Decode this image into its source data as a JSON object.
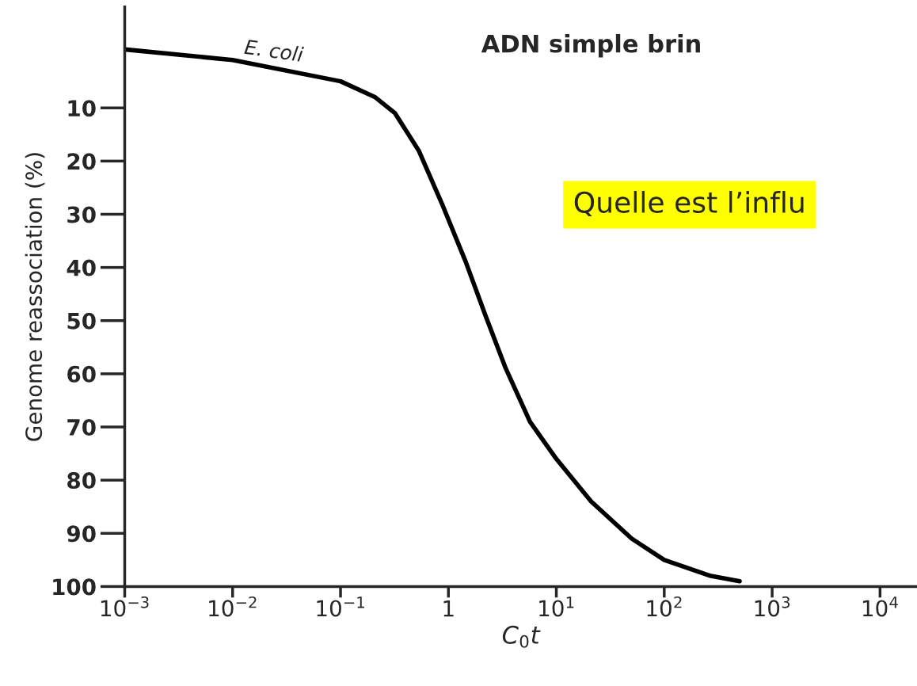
{
  "chart_data": {
    "type": "line",
    "title": "ADN simple brin",
    "xlabel": "C$_{0}$t",
    "ylabel": "Genome reassociation (%)",
    "log": "x",
    "grid": false,
    "legend": false,
    "marker": "none",
    "line_style": "solid",
    "xlim": [
      0.001,
      22000
    ],
    "ylim": [
      100,
      -9
    ],
    "xticks": [
      {
        "value": 0.001,
        "label": "10$^{−3}$"
      },
      {
        "value": 0.01,
        "label": "10$^{−2}$"
      },
      {
        "value": 0.1,
        "label": "10$^{−1}$"
      },
      1,
      {
        "value": 10,
        "label": "10$^{1}$"
      },
      {
        "value": 100,
        "label": "10$^{2}$"
      },
      {
        "value": 1000,
        "label": "10$^{3}$"
      },
      {
        "value": 10000,
        "label": "10$^{4}$"
      }
    ],
    "yticks": [
      10,
      20,
      30,
      40,
      50,
      60,
      70,
      80,
      90,
      100
    ],
    "series": [
      {
        "color": "#000000",
        "x": [
          0.001,
          0.01,
          0.1,
          0.21,
          0.32,
          0.53,
          0.87,
          1.45,
          2.2,
          3.4,
          5.7,
          10,
          21,
          50,
          100,
          270,
          500
        ],
        "values": [
          -1,
          1,
          5,
          8,
          11,
          18,
          28,
          39,
          49,
          59,
          69,
          76,
          84,
          91,
          95,
          98,
          99
        ]
      }
    ],
    "annotations": [
      "E. coli",
      "Quelle est l’influ"
    ]
  }
}
